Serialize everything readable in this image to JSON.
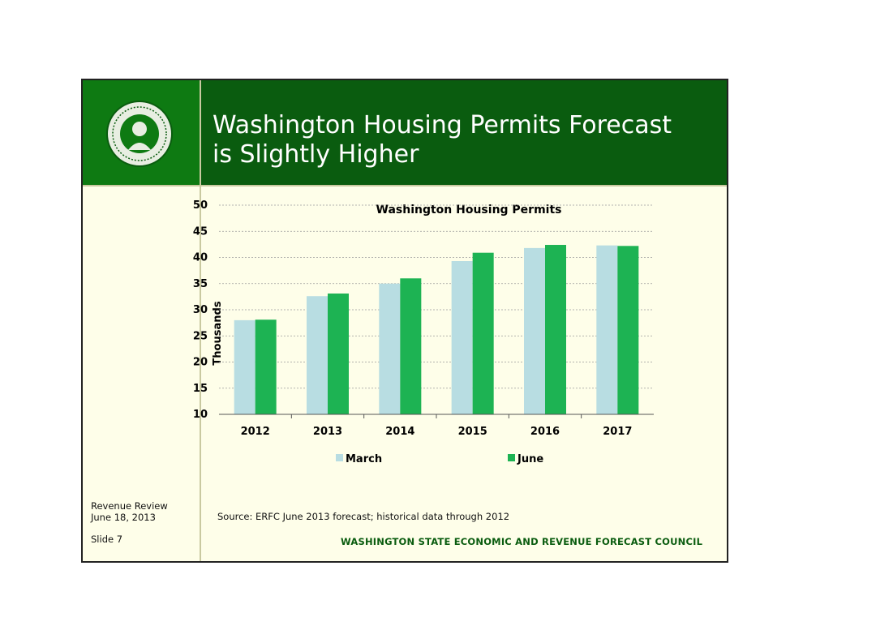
{
  "slide": {
    "title_line1": "Washington Housing Permits Forecast",
    "title_line2": "is Slightly Higher",
    "side_note_line1": "Revenue Review",
    "side_note_line2": "June 18, 2013",
    "slide_number": "Slide 7",
    "source": "Source: ERFC June 2013 forecast; historical data through 2012",
    "organization": "WASHINGTON STATE ECONOMIC AND REVENUE FORECAST COUNCIL"
  },
  "colors": {
    "title_bg": "#0a5c0f",
    "seal_bg": "#0e7a12",
    "march": "#b8dde2",
    "june": "#1db353"
  },
  "chart_data": {
    "type": "bar",
    "title": "Washington Housing Permits",
    "ylabel": "Thousands",
    "xlabel": "",
    "categories": [
      "2012",
      "2013",
      "2014",
      "2015",
      "2016",
      "2017"
    ],
    "series": [
      {
        "name": "March",
        "values": [
          28.0,
          32.6,
          35.0,
          39.3,
          41.8,
          42.3
        ]
      },
      {
        "name": "June",
        "values": [
          28.1,
          33.1,
          36.0,
          40.9,
          42.4,
          42.2
        ]
      }
    ],
    "ylim": [
      10,
      50
    ],
    "yticks": [
      "10",
      "15",
      "20",
      "25",
      "30",
      "35",
      "40",
      "45",
      "50"
    ],
    "grid": true,
    "legend": "bottom"
  }
}
